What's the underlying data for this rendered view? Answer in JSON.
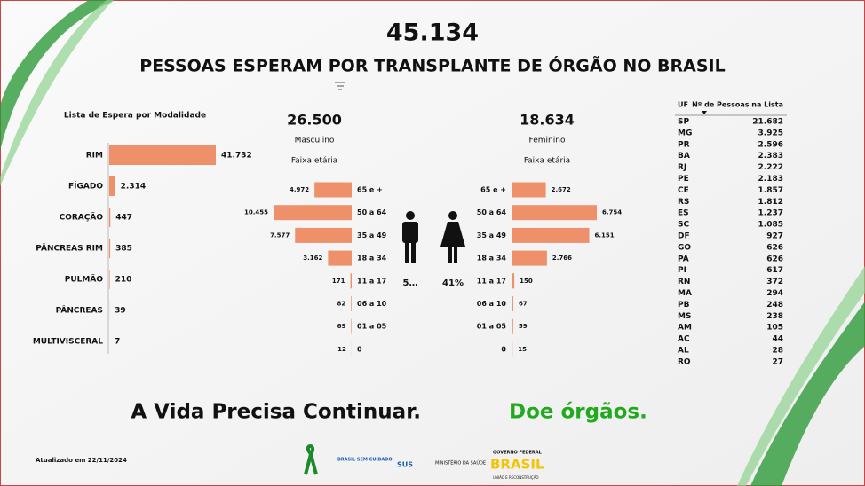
{
  "header": {
    "total": "45.134",
    "title": "PESSOAS ESPERAM POR TRANSPLANTE DE ÓRGÃO NO BRASIL"
  },
  "chart_data": [
    {
      "type": "bar",
      "title": "Lista de Espera por Modalidade",
      "categories": [
        "RIM",
        "FÍGADO",
        "CORAÇÃO",
        "PÂNCREAS RIM",
        "PULMÃO",
        "PÂNCREAS",
        "MULTIVISCERAL"
      ],
      "values": [
        41732,
        2314,
        447,
        385,
        210,
        39,
        7
      ],
      "value_labels": [
        "41.732",
        "2.314",
        "447",
        "385",
        "210",
        "39",
        "7"
      ],
      "color": "#ee916a"
    },
    {
      "type": "bar",
      "title": "26.500",
      "subtitle": "Masculino",
      "axis_label": "Faixa etária",
      "annotation": "5…",
      "categories": [
        "65 e +",
        "50 a 64",
        "35 a 49",
        "18 a 34",
        "11 a 17",
        "06 a 10",
        "01 a 05",
        "0"
      ],
      "values": [
        4972,
        10455,
        7577,
        3162,
        171,
        82,
        69,
        12
      ],
      "value_labels": [
        "4.972",
        "10.455",
        "7.577",
        "3.162",
        "171",
        "82",
        "69",
        "12"
      ],
      "color": "#ee916a"
    },
    {
      "type": "bar",
      "title": "18.634",
      "subtitle": "Feminino",
      "axis_label": "Faixa etária",
      "annotation": "41%",
      "categories": [
        "65 e +",
        "50 a 64",
        "35 a 49",
        "18 a 34",
        "11 a 17",
        "06 a 10",
        "01 a 05",
        "0"
      ],
      "values": [
        2672,
        6754,
        6151,
        2766,
        150,
        67,
        59,
        15
      ],
      "value_labels": [
        "2.672",
        "6.754",
        "6.151",
        "2.766",
        "150",
        "67",
        "59",
        "15"
      ],
      "color": "#ee916a"
    }
  ],
  "table": {
    "columns": [
      "UF",
      "Nº de Pessoas na Lista"
    ],
    "rows": [
      [
        "SP",
        "21.682"
      ],
      [
        "MG",
        "3.925"
      ],
      [
        "PR",
        "2.596"
      ],
      [
        "BA",
        "2.383"
      ],
      [
        "RJ",
        "2.222"
      ],
      [
        "PE",
        "2.183"
      ],
      [
        "CE",
        "1.857"
      ],
      [
        "RS",
        "1.812"
      ],
      [
        "ES",
        "1.237"
      ],
      [
        "SC",
        "1.085"
      ],
      [
        "DF",
        "927"
      ],
      [
        "GO",
        "626"
      ],
      [
        "PA",
        "626"
      ],
      [
        "PI",
        "617"
      ],
      [
        "RN",
        "372"
      ],
      [
        "MA",
        "294"
      ],
      [
        "PB",
        "248"
      ],
      [
        "MS",
        "238"
      ],
      [
        "AM",
        "105"
      ],
      [
        "AC",
        "44"
      ],
      [
        "AL",
        "28"
      ],
      [
        "RO",
        "27"
      ]
    ]
  },
  "footer": {
    "slogan": "A Vida Precisa Continuar.",
    "call": "Doe órgãos.",
    "updated": "Atualizado em 22/11/2024",
    "logos": [
      "BRASIL SEM CUIDADO",
      "SUS",
      "MINISTÉRIO DA SAÚDE",
      "GOVERNO FEDERAL",
      "BRASIL",
      "UNIÃO E RECONSTRUÇÃO"
    ]
  }
}
